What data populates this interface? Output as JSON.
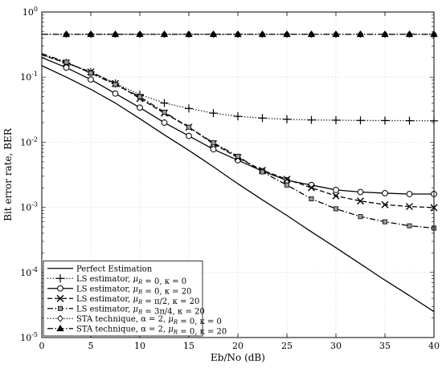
{
  "chart_data": {
    "type": "line",
    "title": "",
    "xlabel": "Eb/No (dB)",
    "ylabel": "Bit error rate, BER",
    "xlim": [
      0,
      40
    ],
    "ylim": [
      1e-05,
      1
    ],
    "yscale": "log",
    "grid": true,
    "legend_position": "bottom-left",
    "x_ticks": [
      0,
      5,
      10,
      15,
      20,
      25,
      30,
      35,
      40
    ],
    "y_ticks": [
      {
        "value": 1e-05,
        "base": "10",
        "exp": "-5"
      },
      {
        "value": 0.0001,
        "base": "10",
        "exp": "-4"
      },
      {
        "value": 0.001,
        "base": "10",
        "exp": "-3"
      },
      {
        "value": 0.01,
        "base": "10",
        "exp": "-2"
      },
      {
        "value": 0.1,
        "base": "10",
        "exp": "-1"
      },
      {
        "value": 1,
        "base": "10",
        "exp": "0"
      }
    ],
    "series": [
      {
        "name": "Perfect Estimation",
        "line_style": "solid",
        "marker": "none",
        "x": [
          0,
          2.5,
          5,
          7.5,
          10,
          12.5,
          15,
          17.5,
          20,
          22.5,
          25,
          27.5,
          30,
          32.5,
          35,
          37.5,
          40
        ],
        "y": [
          0.15,
          0.1,
          0.065,
          0.04,
          0.023,
          0.013,
          0.0075,
          0.0042,
          0.0023,
          0.0013,
          0.00075,
          0.00042,
          0.00024,
          0.000135,
          7.6e-05,
          4.4e-05,
          2.5e-05
        ]
      },
      {
        "name": "LS estimator, μ_R = 0, κ = 0",
        "line_style": "dotted",
        "marker": "plus",
        "x": [
          0,
          2.5,
          5,
          7.5,
          10,
          12.5,
          15,
          17.5,
          20,
          22.5,
          25,
          27.5,
          30,
          32.5,
          35,
          37.5,
          40
        ],
        "y": [
          0.22,
          0.165,
          0.12,
          0.08,
          0.054,
          0.04,
          0.033,
          0.028,
          0.025,
          0.0235,
          0.0225,
          0.022,
          0.0218,
          0.0216,
          0.0215,
          0.0214,
          0.0213
        ]
      },
      {
        "name": "LS estimator, μ_R = 0, κ = 20",
        "line_style": "solid",
        "marker": "circle",
        "x": [
          0,
          2.5,
          5,
          7.5,
          10,
          12.5,
          15,
          17.5,
          20,
          22.5,
          25,
          27.5,
          30,
          32.5,
          35,
          37.5,
          40
        ],
        "y": [
          0.2,
          0.14,
          0.092,
          0.056,
          0.034,
          0.02,
          0.0125,
          0.0078,
          0.0053,
          0.0036,
          0.0026,
          0.0022,
          0.00185,
          0.00172,
          0.00165,
          0.0016,
          0.0016
        ]
      },
      {
        "name": "LS estimator, μ_R = π/2, κ = 20",
        "line_style": "dashed",
        "marker": "x",
        "x": [
          0,
          2.5,
          5,
          7.5,
          10,
          12.5,
          15,
          17.5,
          20,
          22.5,
          25,
          27.5,
          30,
          32.5,
          35,
          37.5,
          40
        ],
        "y": [
          0.22,
          0.165,
          0.12,
          0.08,
          0.047,
          0.028,
          0.017,
          0.0095,
          0.0058,
          0.0037,
          0.0027,
          0.002,
          0.0015,
          0.00125,
          0.0011,
          0.00103,
          0.00099
        ]
      },
      {
        "name": "LS estimator, μ_R = 3π/4, κ = 20",
        "line_style": "dashdot",
        "marker": "square",
        "x": [
          0,
          2.5,
          5,
          7.5,
          10,
          12.5,
          15,
          17.5,
          20,
          22.5,
          25,
          27.5,
          30,
          32.5,
          35,
          37.5,
          40
        ],
        "y": [
          0.23,
          0.17,
          0.115,
          0.077,
          0.05,
          0.029,
          0.017,
          0.0098,
          0.0061,
          0.0035,
          0.0022,
          0.00135,
          0.00095,
          0.00072,
          0.0006,
          0.00052,
          0.00048
        ]
      },
      {
        "name": "STA technique, α = 2, μ_R = 0, κ = 0",
        "line_style": "dotted",
        "marker": "diamond",
        "x": [
          0,
          2.5,
          5,
          7.5,
          10,
          12.5,
          15,
          17.5,
          20,
          22.5,
          25,
          27.5,
          30,
          32.5,
          35,
          37.5,
          40
        ],
        "y": [
          0.455,
          0.455,
          0.455,
          0.455,
          0.455,
          0.455,
          0.455,
          0.455,
          0.455,
          0.455,
          0.455,
          0.455,
          0.455,
          0.455,
          0.455,
          0.455,
          0.455
        ]
      },
      {
        "name": "STA technique, α = 2, μ_R = 0, κ = 20",
        "line_style": "dashdot",
        "marker": "triangle",
        "x": [
          0,
          2.5,
          5,
          7.5,
          10,
          12.5,
          15,
          17.5,
          20,
          22.5,
          25,
          27.5,
          30,
          32.5,
          35,
          37.5,
          40
        ],
        "y": [
          0.455,
          0.455,
          0.455,
          0.455,
          0.455,
          0.455,
          0.455,
          0.455,
          0.455,
          0.455,
          0.455,
          0.455,
          0.455,
          0.455,
          0.455,
          0.455,
          0.455
        ]
      }
    ]
  }
}
